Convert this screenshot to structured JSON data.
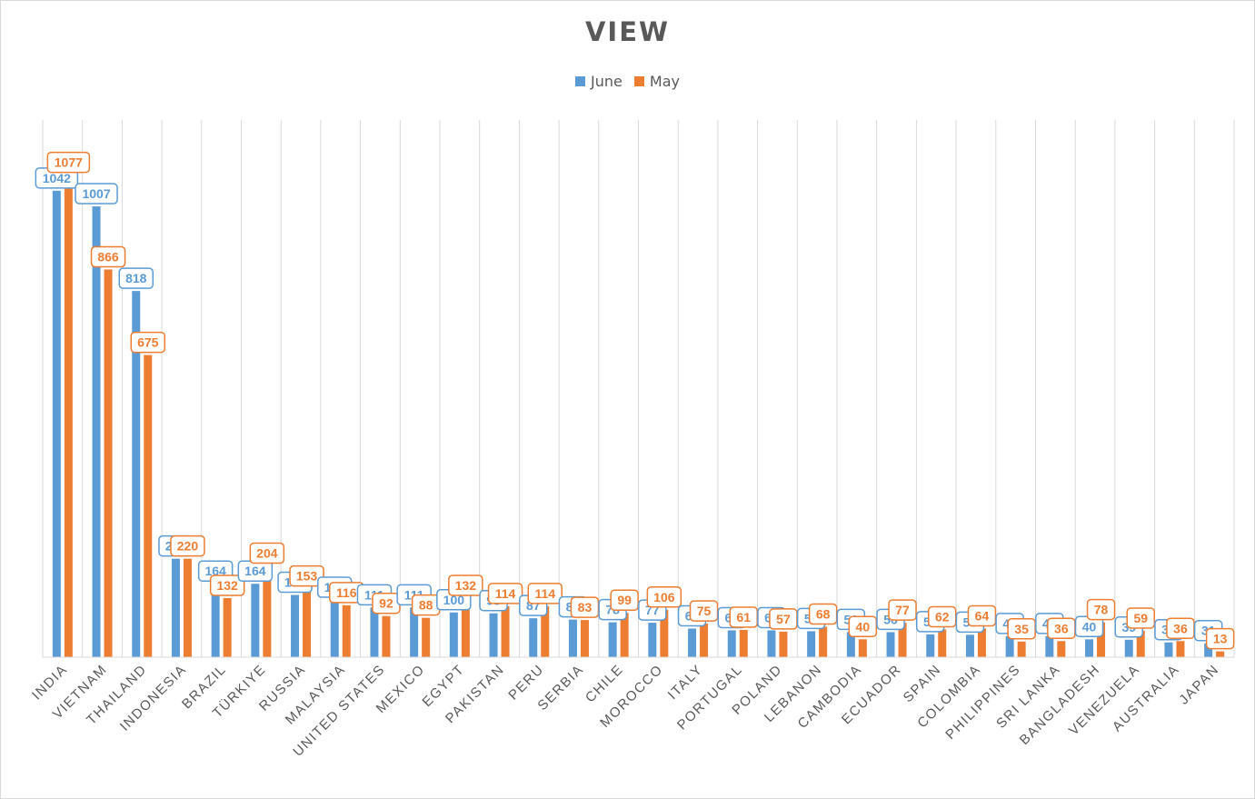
{
  "chart_data": {
    "type": "bar",
    "title": "VIEW",
    "xlabel": "",
    "ylabel": "",
    "ylim": [
      0,
      1200
    ],
    "grid": "vertical",
    "legend_position": "top-center",
    "categories": [
      "INDIA",
      "VIETNAM",
      "THAILAND",
      "INDONESIA",
      "BRAZIL",
      "TÜRKIYE",
      "RUSSIA",
      "MALAYSIA",
      "UNITED STATES",
      "MEXICO",
      "EGYPT",
      "PAKISTAN",
      "PERU",
      "SERBIA",
      "CHILE",
      "MOROCCO",
      "ITALY",
      "PORTUGAL",
      "POLAND",
      "LEBANON",
      "CAMBODIA",
      "ECUADOR",
      "SPAIN",
      "COLOMBIA",
      "PHILIPPINES",
      "SRI LANKA",
      "BANGLADESH",
      "VENEZUELA",
      "AUSTRALIA",
      "JAPAN"
    ],
    "series": [
      {
        "name": "June",
        "color": "#5b9bd5",
        "values": [
          1042,
          1007,
          818,
          220,
          164,
          164,
          139,
          128,
          111,
          111,
          100,
          98,
          87,
          84,
          78,
          77,
          64,
          60,
          60,
          58,
          56,
          56,
          51,
          50,
          47,
          47,
          40,
          39,
          33,
          31
        ]
      },
      {
        "name": "May",
        "color": "#ed7d31",
        "values": [
          1077,
          866,
          675,
          220,
          132,
          204,
          153,
          116,
          92,
          88,
          132,
          114,
          114,
          83,
          99,
          106,
          75,
          61,
          57,
          68,
          40,
          77,
          62,
          64,
          35,
          36,
          78,
          59,
          36,
          13
        ]
      }
    ]
  }
}
